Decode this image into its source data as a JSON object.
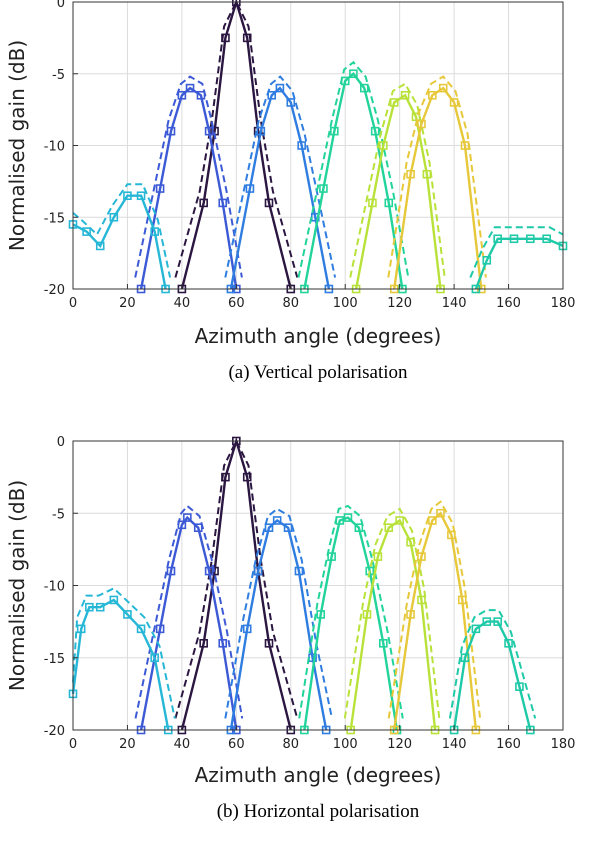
{
  "chart_data": [
    {
      "type": "line",
      "caption": "(a) Vertical polarisation",
      "xlabel": "Azimuth angle (degrees)",
      "ylabel": "Normalised gain (dB)",
      "xlim": [
        0,
        180
      ],
      "ylim": [
        -20,
        0
      ],
      "xticks": [
        0,
        20,
        40,
        60,
        80,
        100,
        120,
        140,
        160,
        180
      ],
      "yticks": [
        0,
        -5,
        -10,
        -15,
        -20
      ],
      "grid": true,
      "legend": "none",
      "line_styles": {
        "solid_with_square_markers": "measured",
        "dashed": "modelled"
      },
      "series": [
        {
          "color": "#2a1640",
          "peak": 60,
          "points": [
            [
              40,
              -20
            ],
            [
              48,
              -14
            ],
            [
              52,
              -9
            ],
            [
              56,
              -2.5
            ],
            [
              60,
              0
            ],
            [
              64,
              -2.5
            ],
            [
              68,
              -9
            ],
            [
              72,
              -14
            ],
            [
              80,
              -20
            ]
          ]
        },
        {
          "color": "#3c5ad6",
          "peak": 43,
          "points": [
            [
              25,
              -20
            ],
            [
              32,
              -13
            ],
            [
              36,
              -9
            ],
            [
              40,
              -6.5
            ],
            [
              43,
              -6
            ],
            [
              47,
              -6.5
            ],
            [
              50,
              -9
            ],
            [
              55,
              -14
            ],
            [
              60,
              -20
            ]
          ]
        },
        {
          "color": "#2f7de0",
          "peak": 75,
          "points": [
            [
              58,
              -20
            ],
            [
              65,
              -13
            ],
            [
              69,
              -9
            ],
            [
              73,
              -6.5
            ],
            [
              76,
              -6
            ],
            [
              80,
              -7
            ],
            [
              84,
              -10
            ],
            [
              89,
              -15
            ],
            [
              94,
              -20
            ]
          ]
        },
        {
          "color": "#27b7d6",
          "peak": 20,
          "points": [
            [
              0,
              -15.5
            ],
            [
              5,
              -16
            ],
            [
              10,
              -17
            ],
            [
              15,
              -15
            ],
            [
              20,
              -13.5
            ],
            [
              25,
              -13.5
            ],
            [
              30,
              -16
            ],
            [
              34,
              -20
            ]
          ]
        },
        {
          "color": "#22d39a",
          "peak": 103,
          "points": [
            [
              85,
              -20
            ],
            [
              92,
              -13
            ],
            [
              96,
              -9
            ],
            [
              100,
              -5.5
            ],
            [
              103,
              -5
            ],
            [
              107,
              -6
            ],
            [
              111,
              -9
            ],
            [
              116,
              -14
            ],
            [
              121,
              -20
            ]
          ]
        },
        {
          "color": "#b8e23a",
          "peak": 122,
          "points": [
            [
              104,
              -20
            ],
            [
              110,
              -14
            ],
            [
              114,
              -10
            ],
            [
              118,
              -7
            ],
            [
              122,
              -6.5
            ],
            [
              126,
              -8
            ],
            [
              130,
              -12
            ],
            [
              135,
              -20
            ]
          ]
        },
        {
          "color": "#e7c83a",
          "peak": 136,
          "points": [
            [
              118,
              -20
            ],
            [
              124,
              -12
            ],
            [
              128,
              -8.5
            ],
            [
              132,
              -6.5
            ],
            [
              136,
              -6
            ],
            [
              140,
              -7
            ],
            [
              144,
              -10
            ],
            [
              150,
              -20
            ]
          ]
        },
        {
          "color": "#1ec9a8",
          "peak": 165,
          "points": [
            [
              148,
              -20
            ],
            [
              152,
              -18
            ],
            [
              156,
              -16.5
            ],
            [
              162,
              -16.5
            ],
            [
              168,
              -16.5
            ],
            [
              174,
              -16.5
            ],
            [
              180,
              -17
            ]
          ]
        }
      ]
    },
    {
      "type": "line",
      "caption": "(b) Horizontal polarisation",
      "xlabel": "Azimuth angle (degrees)",
      "ylabel": "Normalised gain (dB)",
      "xlim": [
        0,
        180
      ],
      "ylim": [
        -20,
        0
      ],
      "xticks": [
        0,
        20,
        40,
        60,
        80,
        100,
        120,
        140,
        160,
        180
      ],
      "yticks": [
        0,
        -5,
        -10,
        -15,
        -20
      ],
      "grid": true,
      "legend": "none",
      "line_styles": {
        "solid_with_square_markers": "measured",
        "dashed": "modelled"
      },
      "series": [
        {
          "color": "#2a1640",
          "peak": 60,
          "points": [
            [
              40,
              -20
            ],
            [
              48,
              -14
            ],
            [
              52,
              -9
            ],
            [
              56,
              -2.5
            ],
            [
              60,
              0
            ],
            [
              64,
              -2.5
            ],
            [
              68,
              -9
            ],
            [
              72,
              -14
            ],
            [
              80,
              -20
            ]
          ]
        },
        {
          "color": "#3c5ad6",
          "peak": 42,
          "points": [
            [
              25,
              -20
            ],
            [
              32,
              -13
            ],
            [
              36,
              -9
            ],
            [
              40,
              -5.8
            ],
            [
              42,
              -5.3
            ],
            [
              46,
              -6
            ],
            [
              50,
              -9
            ],
            [
              55,
              -14
            ],
            [
              60,
              -20
            ]
          ]
        },
        {
          "color": "#2f7de0",
          "peak": 75,
          "points": [
            [
              58,
              -20
            ],
            [
              64,
              -13
            ],
            [
              68,
              -9
            ],
            [
              72,
              -6
            ],
            [
              75,
              -5.5
            ],
            [
              79,
              -6
            ],
            [
              83,
              -9
            ],
            [
              88,
              -15
            ],
            [
              93,
              -20
            ]
          ]
        },
        {
          "color": "#27b7d6",
          "peak": 15,
          "points": [
            [
              0,
              -17.5
            ],
            [
              3,
              -13
            ],
            [
              6,
              -11.5
            ],
            [
              10,
              -11.5
            ],
            [
              15,
              -11
            ],
            [
              20,
              -12
            ],
            [
              25,
              -13
            ],
            [
              30,
              -15
            ],
            [
              35,
              -20
            ]
          ]
        },
        {
          "color": "#22d39a",
          "peak": 101,
          "points": [
            [
              85,
              -20
            ],
            [
              91,
              -12
            ],
            [
              95,
              -8
            ],
            [
              98,
              -5.5
            ],
            [
              101,
              -5.3
            ],
            [
              105,
              -6
            ],
            [
              109,
              -9
            ],
            [
              114,
              -14
            ],
            [
              119,
              -20
            ]
          ]
        },
        {
          "color": "#b8e23a",
          "peak": 120,
          "points": [
            [
              102,
              -20
            ],
            [
              108,
              -12
            ],
            [
              112,
              -8
            ],
            [
              116,
              -6
            ],
            [
              120,
              -5.5
            ],
            [
              124,
              -7
            ],
            [
              128,
              -11
            ],
            [
              133,
              -20
            ]
          ]
        },
        {
          "color": "#e7c83a",
          "peak": 135,
          "points": [
            [
              118,
              -20
            ],
            [
              124,
              -12
            ],
            [
              128,
              -8
            ],
            [
              132,
              -5.5
            ],
            [
              135,
              -5
            ],
            [
              139,
              -6.5
            ],
            [
              143,
              -11
            ],
            [
              148,
              -20
            ]
          ]
        },
        {
          "color": "#1ec9a8",
          "peak": 153,
          "points": [
            [
              140,
              -20
            ],
            [
              144,
              -15
            ],
            [
              148,
              -13
            ],
            [
              152,
              -12.5
            ],
            [
              156,
              -12.5
            ],
            [
              160,
              -14
            ],
            [
              164,
              -17
            ],
            [
              168,
              -20
            ]
          ]
        }
      ]
    }
  ]
}
